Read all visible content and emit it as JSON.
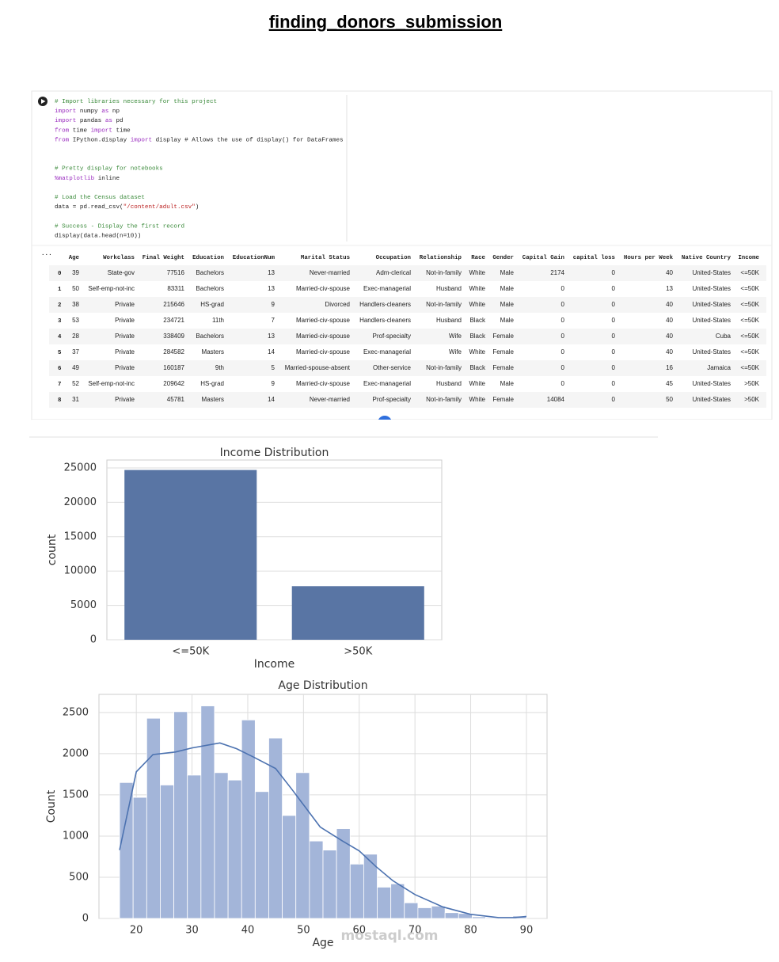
{
  "title": "finding_donors_submission",
  "code": {
    "lines": [
      "# Import libraries necessary for this project",
      "import numpy as np",
      "import pandas as pd",
      "from time import time",
      "from IPython.display import display # Allows the use of display() for DataFrames",
      "# Pretty display for notebooks",
      "%matplotlib inline",
      "# Load the Census dataset",
      "data = pd.read_csv(\"/content/adult.csv\")",
      "# Success - Display the first record",
      "display(data.head(n=10))"
    ],
    "output_marker": "..."
  },
  "table": {
    "columns": [
      "Age",
      "Workclass",
      "Final Weight",
      "Education",
      "EducationNum",
      "Marital Status",
      "Occupation",
      "Relationship",
      "Race",
      "Gender",
      "Capital Gain",
      "capital loss",
      "Hours per Week",
      "Native Country",
      "Income"
    ],
    "index": [
      "0",
      "1",
      "2",
      "3",
      "4",
      "5",
      "6",
      "7",
      "8"
    ],
    "rows": [
      [
        39,
        "State-gov",
        77516,
        "Bachelors",
        13,
        "Never-married",
        "Adm-clerical",
        "Not-in-family",
        "White",
        "Male",
        2174,
        0,
        40,
        "United-States",
        "<=50K"
      ],
      [
        50,
        "Self-emp-not-inc",
        83311,
        "Bachelors",
        13,
        "Married-civ-spouse",
        "Exec-managerial",
        "Husband",
        "White",
        "Male",
        0,
        0,
        13,
        "United-States",
        "<=50K"
      ],
      [
        38,
        "Private",
        215646,
        "HS-grad",
        9,
        "Divorced",
        "Handlers-cleaners",
        "Not-in-family",
        "White",
        "Male",
        0,
        0,
        40,
        "United-States",
        "<=50K"
      ],
      [
        53,
        "Private",
        234721,
        "11th",
        7,
        "Married-civ-spouse",
        "Handlers-cleaners",
        "Husband",
        "Black",
        "Male",
        0,
        0,
        40,
        "United-States",
        "<=50K"
      ],
      [
        28,
        "Private",
        338409,
        "Bachelors",
        13,
        "Married-civ-spouse",
        "Prof-specialty",
        "Wife",
        "Black",
        "Female",
        0,
        0,
        40,
        "Cuba",
        "<=50K"
      ],
      [
        37,
        "Private",
        284582,
        "Masters",
        14,
        "Married-civ-spouse",
        "Exec-managerial",
        "Wife",
        "White",
        "Female",
        0,
        0,
        40,
        "United-States",
        "<=50K"
      ],
      [
        49,
        "Private",
        160187,
        "9th",
        5,
        "Married-spouse-absent",
        "Other-service",
        "Not-in-family",
        "Black",
        "Female",
        0,
        0,
        16,
        "Jamaica",
        "<=50K"
      ],
      [
        52,
        "Self-emp-not-inc",
        209642,
        "HS-grad",
        9,
        "Married-civ-spouse",
        "Exec-managerial",
        "Husband",
        "White",
        "Male",
        0,
        0,
        45,
        "United-States",
        ">50K"
      ],
      [
        31,
        "Private",
        45781,
        "Masters",
        14,
        "Never-married",
        "Prof-specialty",
        "Not-in-family",
        "White",
        "Female",
        14084,
        0,
        50,
        "United-States",
        ">50K"
      ]
    ]
  },
  "chart_data": [
    {
      "type": "bar",
      "title": "Income Distribution",
      "xlabel": "Income",
      "ylabel": "count",
      "categories": [
        "<=50K",
        ">50K"
      ],
      "values": [
        24700,
        7800
      ],
      "color": "#5975a4",
      "ylim": [
        0,
        26150
      ],
      "yticks": [
        0,
        5000,
        10000,
        15000,
        20000,
        25000
      ],
      "grid": true
    },
    {
      "type": "histogram",
      "title": "Age Distribution",
      "xlabel": "Age",
      "ylabel": "Count",
      "bins": [
        17,
        19.43,
        21.87,
        24.3,
        26.73,
        29.17,
        31.6,
        34.03,
        36.47,
        38.9,
        41.33,
        43.77,
        46.2,
        48.63,
        51.07,
        53.5,
        55.93,
        58.37,
        60.8,
        63.23,
        65.67,
        68.1,
        70.53,
        72.97,
        75.4,
        77.83,
        80.27,
        82.7,
        85.13,
        87.57,
        90
      ],
      "values": [
        1650,
        1470,
        2430,
        1620,
        2510,
        1740,
        2580,
        1770,
        1680,
        2410,
        1540,
        2190,
        1250,
        1770,
        940,
        830,
        1090,
        660,
        780,
        380,
        420,
        190,
        130,
        150,
        70,
        60,
        20,
        10,
        5,
        30
      ],
      "color": "#a3b5d9",
      "kde": {
        "x": [
          17,
          20,
          23,
          27,
          30,
          35,
          38,
          41,
          45,
          48,
          50,
          53,
          57,
          60,
          63,
          66,
          70,
          75,
          80,
          85,
          88,
          90
        ],
        "values": [
          830,
          1780,
          1990,
          2020,
          2070,
          2130,
          2060,
          1960,
          1820,
          1560,
          1380,
          1110,
          940,
          820,
          630,
          460,
          290,
          140,
          50,
          10,
          10,
          25
        ],
        "color": "#4c72b0"
      },
      "xlim": [
        13.3,
        93.7
      ],
      "ylim": [
        0,
        2720
      ],
      "xticks": [
        20,
        30,
        40,
        50,
        60,
        70,
        80,
        90
      ],
      "yticks": [
        0,
        500,
        1000,
        1500,
        2000,
        2500
      ],
      "grid": true
    }
  ],
  "watermark": "mostaql.com"
}
